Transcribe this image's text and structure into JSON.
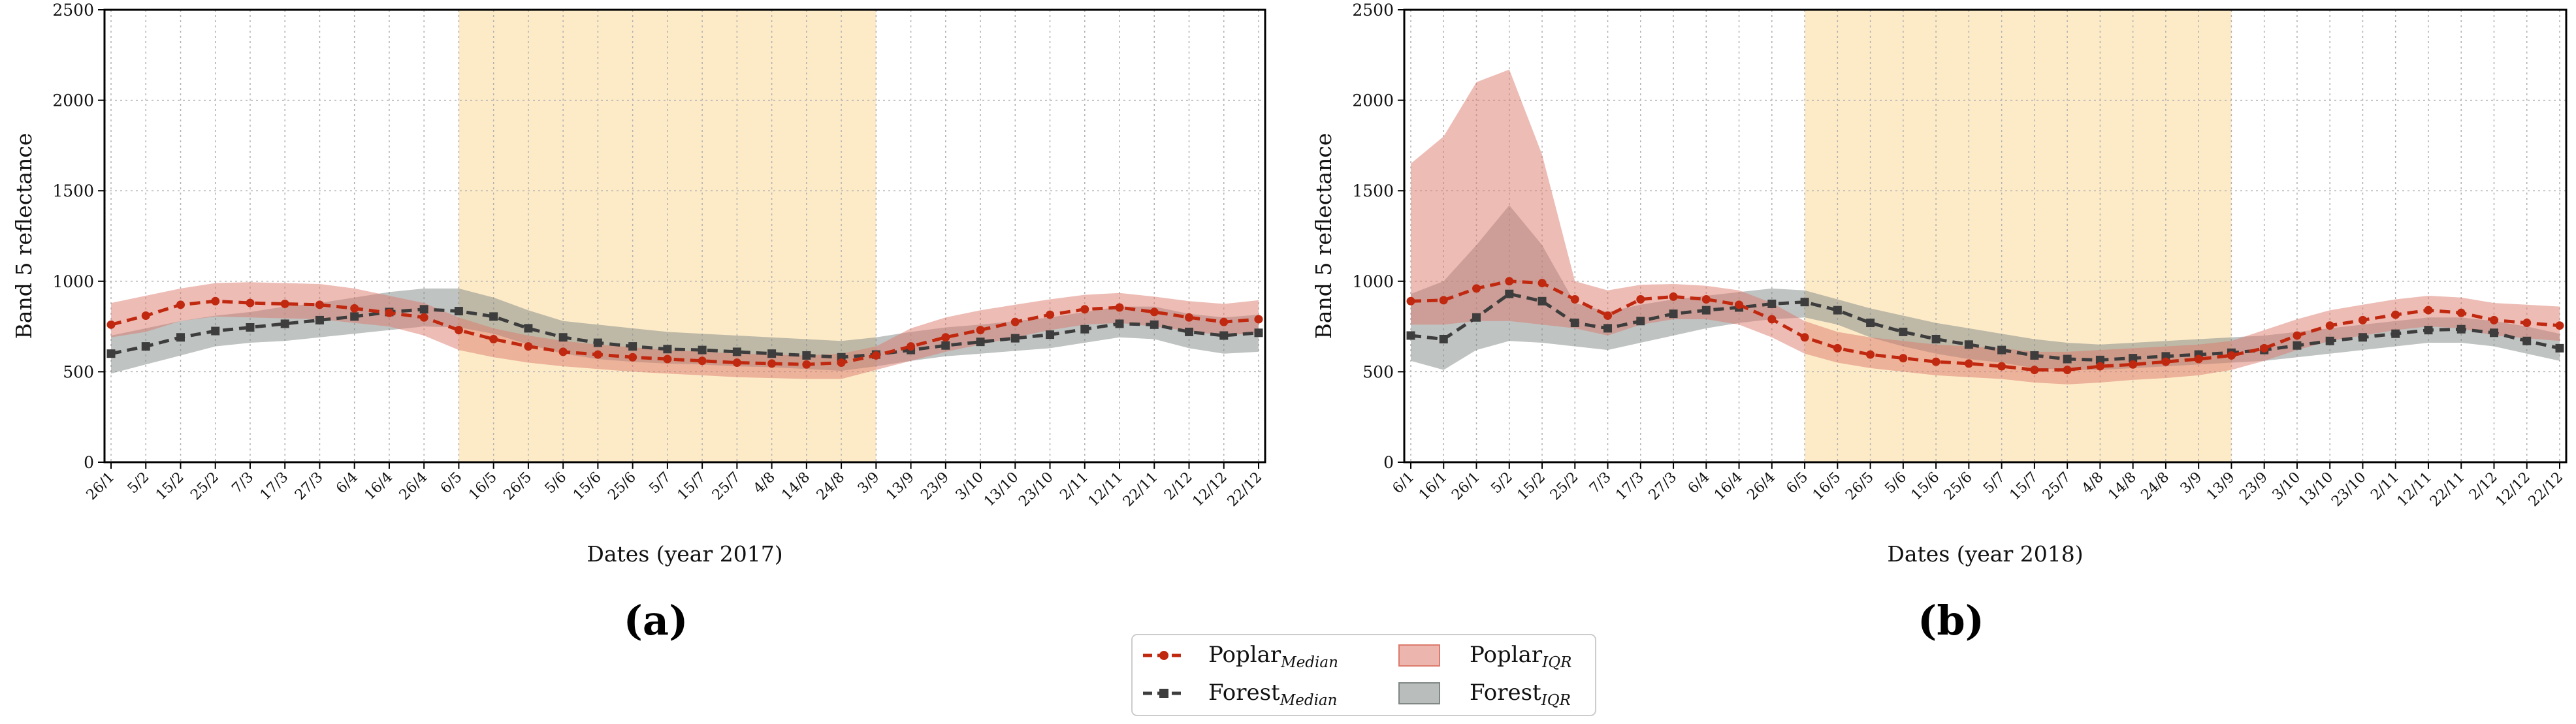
{
  "chart_data": [
    {
      "type": "line",
      "panel_label": "(a)",
      "xlabel": "Dates (year 2017)",
      "ylabel": "Band 5 reflectance",
      "ylim": [
        0,
        2500
      ],
      "yticks": [
        0,
        500,
        1000,
        1500,
        2000,
        2500
      ],
      "highlight_category_range": [
        "6/5",
        "3/9"
      ],
      "categories": [
        "26/1",
        "5/2",
        "15/2",
        "25/2",
        "7/3",
        "17/3",
        "27/3",
        "6/4",
        "16/4",
        "26/4",
        "6/5",
        "16/5",
        "26/5",
        "5/6",
        "15/6",
        "25/6",
        "5/7",
        "15/7",
        "25/7",
        "4/8",
        "14/8",
        "24/8",
        "3/9",
        "13/9",
        "23/9",
        "3/10",
        "13/10",
        "23/10",
        "2/11",
        "12/11",
        "22/11",
        "2/12",
        "12/12",
        "22/12"
      ],
      "series": [
        {
          "name": "Poplar median",
          "values": [
            760,
            810,
            870,
            890,
            880,
            875,
            870,
            850,
            825,
            800,
            730,
            680,
            640,
            610,
            595,
            580,
            570,
            560,
            550,
            545,
            540,
            550,
            590,
            640,
            690,
            730,
            775,
            815,
            845,
            855,
            830,
            800,
            775,
            790
          ]
        },
        {
          "name": "Forest median",
          "values": [
            600,
            640,
            690,
            725,
            745,
            765,
            785,
            805,
            830,
            845,
            835,
            805,
            740,
            690,
            660,
            640,
            625,
            620,
            610,
            600,
            590,
            580,
            595,
            620,
            645,
            665,
            685,
            705,
            735,
            765,
            760,
            720,
            700,
            715
          ]
        }
      ],
      "bands": [
        {
          "name": "Poplar IQR",
          "upper": [
            880,
            920,
            960,
            990,
            995,
            990,
            985,
            960,
            920,
            880,
            800,
            740,
            700,
            670,
            650,
            635,
            620,
            610,
            600,
            595,
            590,
            600,
            640,
            740,
            800,
            840,
            870,
            900,
            925,
            935,
            915,
            890,
            875,
            895
          ],
          "lower": [
            690,
            720,
            780,
            805,
            800,
            795,
            790,
            770,
            750,
            700,
            620,
            580,
            550,
            530,
            515,
            500,
            490,
            480,
            470,
            465,
            460,
            460,
            510,
            560,
            610,
            650,
            690,
            730,
            760,
            770,
            750,
            725,
            700,
            715
          ]
        },
        {
          "name": "Forest IQR",
          "upper": [
            700,
            740,
            780,
            810,
            830,
            860,
            880,
            910,
            940,
            960,
            960,
            910,
            840,
            780,
            760,
            740,
            720,
            710,
            700,
            690,
            680,
            670,
            690,
            720,
            745,
            760,
            780,
            800,
            830,
            860,
            860,
            820,
            800,
            815
          ]
        },
        {
          "name": "Forest IQR lower",
          "lower": [
            490,
            540,
            590,
            640,
            660,
            670,
            690,
            710,
            730,
            750,
            745,
            710,
            650,
            600,
            570,
            555,
            545,
            540,
            530,
            525,
            515,
            505,
            530,
            560,
            585,
            600,
            615,
            630,
            660,
            690,
            680,
            630,
            600,
            610
          ]
        }
      ]
    },
    {
      "type": "line",
      "panel_label": "(b)",
      "xlabel": "Dates (year 2018)",
      "ylabel": "Band 5 reflectance",
      "ylim": [
        0,
        2500
      ],
      "yticks": [
        0,
        500,
        1000,
        1500,
        2000,
        2500
      ],
      "highlight_category_range": [
        "6/5",
        "13/9"
      ],
      "categories": [
        "6/1",
        "16/1",
        "26/1",
        "5/2",
        "15/2",
        "25/2",
        "7/3",
        "17/3",
        "27/3",
        "6/4",
        "16/4",
        "26/4",
        "6/5",
        "16/5",
        "26/5",
        "5/6",
        "15/6",
        "25/6",
        "5/7",
        "15/7",
        "25/7",
        "4/8",
        "14/8",
        "24/8",
        "3/9",
        "13/9",
        "23/9",
        "3/10",
        "13/10",
        "23/10",
        "2/11",
        "12/11",
        "22/11",
        "2/12",
        "12/12",
        "22/12"
      ],
      "series": [
        {
          "name": "Poplar median",
          "values": [
            890,
            895,
            960,
            1000,
            990,
            900,
            810,
            900,
            915,
            900,
            870,
            790,
            690,
            630,
            595,
            575,
            555,
            545,
            530,
            510,
            510,
            530,
            540,
            555,
            570,
            590,
            630,
            700,
            755,
            785,
            815,
            840,
            825,
            785,
            770,
            755
          ]
        },
        {
          "name": "Forest median",
          "values": [
            700,
            680,
            800,
            930,
            890,
            770,
            740,
            780,
            820,
            840,
            855,
            875,
            885,
            840,
            770,
            720,
            680,
            650,
            620,
            590,
            570,
            565,
            575,
            585,
            595,
            605,
            620,
            645,
            670,
            690,
            710,
            730,
            735,
            715,
            670,
            630
          ]
        }
      ],
      "bands": [
        {
          "name": "Poplar IQR",
          "upper": [
            1650,
            1800,
            2100,
            2170,
            1700,
            1000,
            950,
            980,
            985,
            975,
            950,
            880,
            780,
            720,
            690,
            670,
            650,
            640,
            630,
            610,
            610,
            620,
            630,
            640,
            650,
            670,
            730,
            790,
            840,
            870,
            900,
            920,
            910,
            880,
            870,
            860
          ],
          "lower": [
            760,
            760,
            780,
            780,
            760,
            740,
            700,
            760,
            790,
            790,
            760,
            690,
            600,
            550,
            520,
            500,
            480,
            470,
            460,
            440,
            430,
            440,
            455,
            465,
            480,
            510,
            560,
            620,
            670,
            700,
            730,
            750,
            740,
            700,
            685,
            670
          ]
        },
        {
          "name": "Forest IQR",
          "upper": [
            930,
            1000,
            1200,
            1420,
            1200,
            880,
            830,
            870,
            900,
            920,
            940,
            960,
            950,
            900,
            850,
            810,
            770,
            740,
            710,
            680,
            660,
            650,
            660,
            670,
            680,
            690,
            700,
            720,
            740,
            760,
            780,
            800,
            800,
            780,
            750,
            710
          ]
        },
        {
          "name": "Forest IQR lower",
          "lower": [
            560,
            510,
            620,
            670,
            660,
            640,
            620,
            660,
            700,
            740,
            770,
            790,
            800,
            760,
            690,
            640,
            600,
            570,
            550,
            520,
            510,
            510,
            520,
            530,
            540,
            550,
            560,
            580,
            600,
            620,
            640,
            660,
            660,
            640,
            600,
            560
          ]
        }
      ]
    }
  ],
  "legend": {
    "poplar_median": "Poplar",
    "poplar_median_sub": "Median",
    "forest_median": "Forest",
    "forest_median_sub": "Median",
    "poplar_iqr": "Poplar",
    "poplar_iqr_sub": "IQR",
    "forest_iqr": "Forest",
    "forest_iqr_sub": "IQR"
  },
  "colors": {
    "poplar": "#c0280f",
    "poplar_band": "#dc7a6c",
    "forest": "#3d3d3d",
    "forest_band": "#7f8885",
    "highlight": "#fdebc8",
    "grid": "#b0b0b0"
  }
}
